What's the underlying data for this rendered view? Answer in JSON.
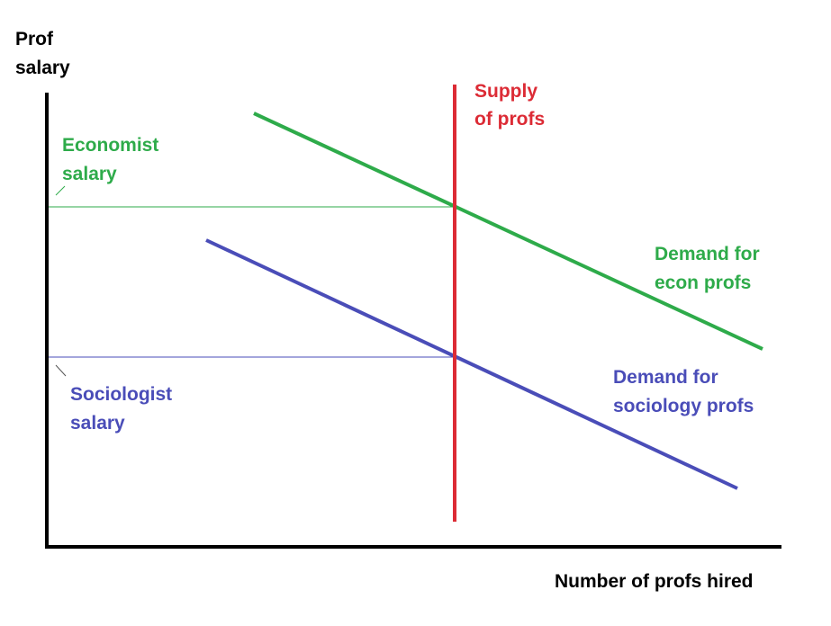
{
  "axes": {
    "y_label_line1": "Prof",
    "y_label_line2": "salary",
    "x_label": "Number of profs hired"
  },
  "supply": {
    "label_line1": "Supply",
    "label_line2": "of profs",
    "color": "#dc2b35"
  },
  "econ": {
    "demand_line1": "Demand for",
    "demand_line2": "econ profs",
    "salary_line1": "Economist",
    "salary_line2": "salary",
    "color": "#2eab4a"
  },
  "soc": {
    "demand_line1": "Demand for",
    "demand_line2": "sociology profs",
    "salary_line1": "Sociologist",
    "salary_line2": "salary",
    "color": "#4a4db8"
  }
}
